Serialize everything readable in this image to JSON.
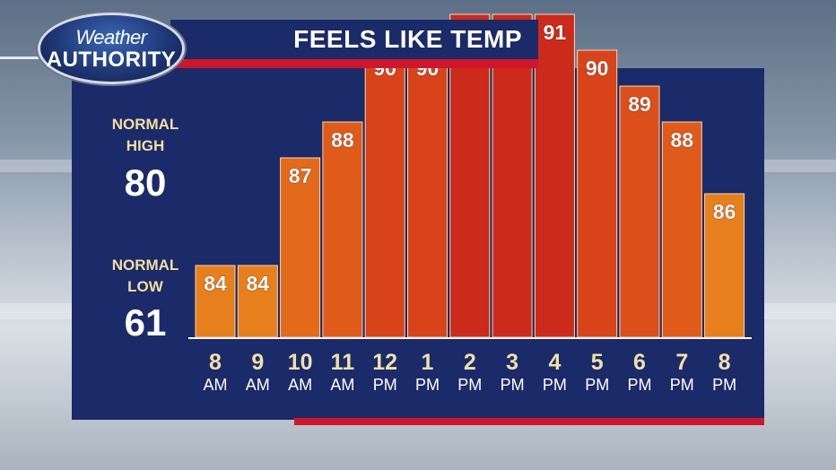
{
  "brand": {
    "line1": "Weather",
    "line2": "AUTHORITY"
  },
  "title": "FEELS LIKE TEMP",
  "normals": {
    "high_label_1": "NORMAL",
    "high_label_2": "HIGH",
    "high_value": "80",
    "low_label_1": "NORMAL",
    "low_label_2": "LOW",
    "low_value": "61"
  },
  "colors": {
    "panel": "#1b2a68",
    "accent_red": "#d0162b",
    "label_yellow": "#f2dfa0",
    "hour_yellow": "#f0e0a8"
  },
  "chart_data": {
    "type": "bar",
    "title": "FEELS LIKE TEMP",
    "categories": [
      "8 AM",
      "9 AM",
      "10 AM",
      "11 AM",
      "12 PM",
      "1 PM",
      "2 PM",
      "3 PM",
      "4 PM",
      "5 PM",
      "6 PM",
      "7 PM",
      "8 PM"
    ],
    "hour_labels": [
      "8",
      "9",
      "10",
      "11",
      "12",
      "1",
      "2",
      "3",
      "4",
      "5",
      "6",
      "7",
      "8"
    ],
    "ampm_labels": [
      "AM",
      "AM",
      "AM",
      "AM",
      "PM",
      "PM",
      "PM",
      "PM",
      "PM",
      "PM",
      "PM",
      "PM",
      "PM"
    ],
    "values": [
      84,
      84,
      87,
      88,
      90,
      90,
      91,
      91,
      91,
      90,
      89,
      88,
      86
    ],
    "bar_colors": [
      "#e67f1c",
      "#e67f1c",
      "#e36a1a",
      "#e05a1a",
      "#d9431a",
      "#d9431a",
      "#cc2a1a",
      "#cc2a1a",
      "#cc2a1a",
      "#d9431a",
      "#dc4f1a",
      "#e05a1a",
      "#e67f1c"
    ],
    "xlabel": "",
    "ylabel": "",
    "grid": false,
    "legend": "none"
  }
}
